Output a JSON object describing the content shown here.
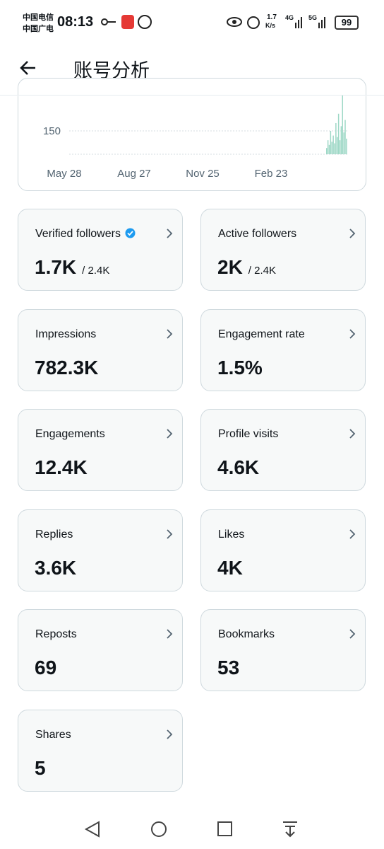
{
  "status_bar": {
    "carrier_1": "中国电信",
    "carrier_2": "中国广电",
    "time": "08:13",
    "speed": "1.7",
    "speed_unit": "K/s",
    "network_1": "4G",
    "network_2": "5G",
    "battery": "99"
  },
  "header": {
    "title": "账号分析"
  },
  "chart_data": {
    "type": "bar",
    "xtick_labels": [
      "May 28",
      "Aug 27",
      "Nov 25",
      "Feb 23"
    ],
    "yticks": [
      150
    ],
    "ylim": [
      0,
      377
    ],
    "values": [
      40,
      90,
      60,
      150,
      80,
      120,
      70,
      200,
      110,
      260,
      90,
      180,
      377,
      140,
      220,
      100
    ],
    "color": "#9ed8c6"
  },
  "cards": [
    {
      "label": "Verified followers",
      "value": "1.7K",
      "total": "/ 2.4K",
      "verified": true
    },
    {
      "label": "Active followers",
      "value": "2K",
      "total": "/ 2.4K"
    },
    {
      "label": "Impressions",
      "value": "782.3K"
    },
    {
      "label": "Engagement rate",
      "value": "1.5%"
    },
    {
      "label": "Engagements",
      "value": "12.4K"
    },
    {
      "label": "Profile visits",
      "value": "4.6K"
    },
    {
      "label": "Replies",
      "value": "3.6K"
    },
    {
      "label": "Likes",
      "value": "4K"
    },
    {
      "label": "Reposts",
      "value": "69"
    },
    {
      "label": "Bookmarks",
      "value": "53"
    },
    {
      "label": "Shares",
      "value": "5"
    }
  ]
}
